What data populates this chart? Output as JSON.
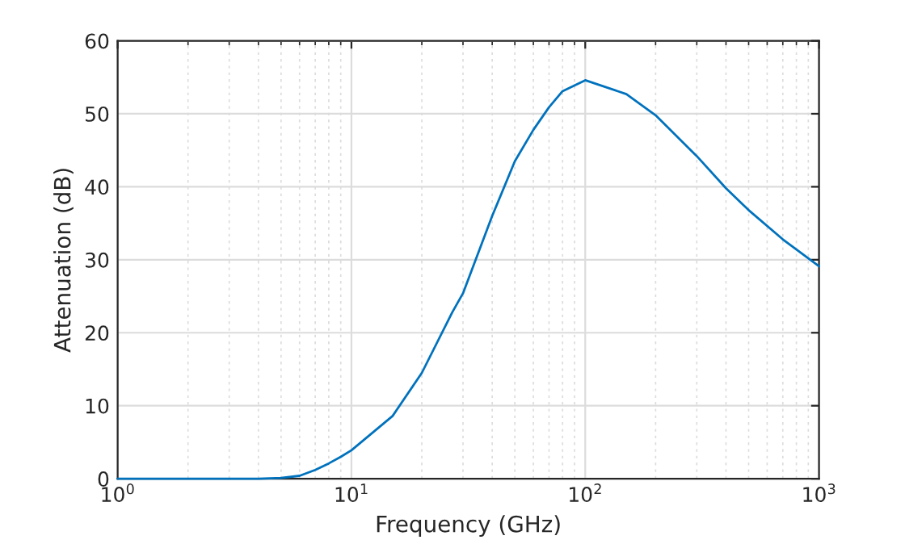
{
  "chart_data": {
    "type": "line",
    "xlabel": "Frequency (GHz)",
    "ylabel": "Attenuation (dB)",
    "log": "x",
    "xlim": [
      1,
      1000
    ],
    "xticks": [
      {
        "value": 1,
        "label": "10$^{0}$"
      },
      {
        "value": 10,
        "label": "10$^{1}$"
      },
      {
        "value": 100,
        "label": "10$^{2}$"
      },
      {
        "value": 1000,
        "label": "10$^{3}$"
      }
    ],
    "ylim": [
      0,
      60
    ],
    "yticks": [
      0,
      10,
      20,
      30,
      40,
      50,
      60
    ],
    "grid": true,
    "series": [
      {
        "color": "#0072bd",
        "x": [
          1,
          2,
          3,
          4,
          5,
          6,
          7,
          8,
          9,
          10,
          15,
          20,
          27,
          30,
          40,
          50,
          60,
          70,
          80,
          100,
          150,
          200,
          300,
          400,
          500,
          700,
          1000
        ],
        "values": [
          0,
          0,
          0,
          0,
          0.1,
          0.4,
          1.2,
          2.1,
          3.0,
          3.9,
          8.6,
          14.5,
          22.8,
          25.4,
          36,
          43.5,
          47.8,
          50.9,
          53.1,
          54.6,
          52.7,
          49.8,
          44.2,
          39.8,
          36.8,
          32.8,
          29.1
        ]
      }
    ]
  }
}
